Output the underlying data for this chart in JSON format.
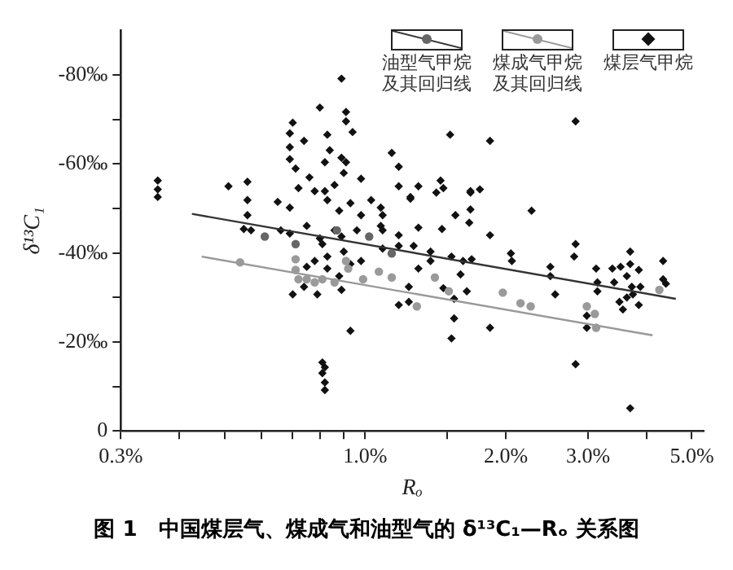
{
  "chart_data": {
    "type": "scatter",
    "title": "图 1　中国煤层气、煤成气和油型气的 δ¹³C₁—Rₒ 关系图",
    "xlabel": "Rₒ",
    "ylabel": "δ¹³C₁",
    "log": "x",
    "grid": false,
    "legend": "top right",
    "xlim": [
      0.3,
      5.3
    ],
    "xticks": [
      {
        "value": 0.3,
        "label": "0.3%"
      },
      {
        "value": 0.4,
        "label": null
      },
      {
        "value": 0.5,
        "label": null
      },
      {
        "value": 0.6,
        "label": null
      },
      {
        "value": 0.7,
        "label": null
      },
      {
        "value": 0.8,
        "label": null
      },
      {
        "value": 0.9,
        "label": null
      },
      {
        "value": 1,
        "label": "1.0%"
      },
      {
        "value": 1.5,
        "label": null
      },
      {
        "value": 2,
        "label": "2.0%"
      },
      {
        "value": 3,
        "label": "3.0%"
      },
      {
        "value": 4,
        "label": null
      },
      {
        "value": 5,
        "label": "5.0%"
      }
    ],
    "ylim": [
      0,
      -90
    ],
    "yticks": [
      0,
      {
        "value": -10,
        "label": null
      },
      {
        "value": -20,
        "label": "-20‰"
      },
      {
        "value": -30,
        "label": null
      },
      {
        "value": -40,
        "label": "-40‰"
      },
      {
        "value": -50,
        "label": null
      },
      {
        "value": -60,
        "label": "-60‰"
      },
      {
        "value": -70,
        "label": null
      },
      {
        "value": -80,
        "label": "-80‰"
      }
    ],
    "series": [
      {
        "name": "油型气甲烷及其回归线",
        "type": "scatter",
        "marker": "circle",
        "color": "#666666",
        "x": [
          0.61,
          0.71,
          0.87,
          1.02,
          1.14
        ],
        "values": [
          -43.7,
          -42,
          -45.1,
          -43.7,
          -39.9
        ]
      },
      {
        "type": "line",
        "marker": "none",
        "color": "#333333",
        "x": [
          0.426,
          4.62
        ],
        "values": [
          -48.8,
          -29.7
        ]
      },
      {
        "name": "煤成气甲烷及其回归线",
        "type": "scatter",
        "marker": "circle",
        "color": "#9a9a9a",
        "x": [
          0.54,
          0.71,
          0.71,
          0.72,
          0.75,
          0.78,
          0.81,
          0.86,
          0.91,
          0.92,
          0.99,
          1.07,
          1.08,
          1.14,
          1.41,
          1.51,
          1.29,
          1.97,
          2.15,
          2.26,
          2.98,
          3.1,
          3.12,
          4.26
        ],
        "values": [
          -37.9,
          -38.6,
          -36.2,
          -34.1,
          -34.1,
          -33.4,
          -34.1,
          -33.4,
          -38.2,
          -36.5,
          -34.1,
          -35.8,
          null,
          -34.5,
          -34.5,
          -31.4,
          -28,
          -31.1,
          -28.7,
          -28,
          -28,
          -26.3,
          -23.2,
          -31.7
        ]
      },
      {
        "type": "line",
        "marker": "none",
        "color": "#999999",
        "x": [
          0.447,
          4.12
        ],
        "values": [
          -39.2,
          -21.5
        ]
      },
      {
        "name": "煤层气甲烷",
        "type": "scatter",
        "marker": "diamond",
        "color": "#111111",
        "x": [
          0.36,
          0.36,
          0.36,
          0.51,
          0.56,
          0.56,
          0.89,
          0.8,
          0.91,
          0.91,
          0.94,
          0.7,
          0.69,
          0.69,
          0.74,
          0.83,
          0.84,
          0.82,
          0.69,
          0.71,
          0.76,
          0.89,
          0.91,
          0.9,
          0.98,
          0.82,
          0.86,
          1.14,
          1.18,
          1.52,
          1.85,
          2.82,
          1.45,
          1.68,
          1.76,
          1.18,
          1.3,
          1.25,
          1.03,
          0.56,
          0.55,
          0.57,
          0.65,
          0.69,
          0.66,
          0.69,
          0.72,
          0.75,
          0.8,
          0.81,
          0.78,
          0.75,
          0.74,
          0.7,
          0.79,
          0.83,
          0.83,
          0.86,
          0.89,
          0.9,
          0.88,
          0.89,
          0.93,
          0.96,
          0.98,
          0.93,
          0.81,
          0.81,
          0.82,
          0.82,
          0.82,
          0.78,
          0.83,
          0.88,
          0.93,
          0.98,
          1.08,
          1.08,
          1.25,
          1.42,
          1.47,
          1.68,
          1.56,
          1.68,
          1.67,
          1.09,
          1.09,
          1.3,
          1.18,
          1.46,
          1.85,
          2.27,
          1.09,
          1.18,
          1.27,
          1.38,
          1.38,
          1.53,
          1.62,
          1.69,
          1.6,
          1.3,
          1.24,
          1.47,
          1.65,
          1.55,
          1.18,
          1.24,
          1.55,
          1.53,
          1.85,
          2.05,
          2.06,
          2.49,
          2.49,
          2.55,
          2.82,
          2.8,
          2.82,
          3.12,
          3.14,
          3.14,
          2.98,
          2.98,
          3.38,
          3.41,
          3.52,
          3.5,
          3.56,
          3.69,
          3.69,
          3.63,
          3.72,
          3.63,
          3.74,
          3.85,
          3.88,
          3.85,
          3.69,
          4.34,
          4.34,
          4.4
        ],
        "values": [
          -56.3,
          -54.3,
          -52.6,
          -55,
          -56,
          -51.9,
          -79.2,
          -72.7,
          -71.7,
          -69.6,
          -67.2,
          -69.3,
          -66.9,
          -63.8,
          -65.2,
          -66.6,
          -63.1,
          -60.4,
          -61.1,
          -59,
          -57,
          -61.4,
          -60.4,
          -58,
          -56.7,
          -53.9,
          -55.3,
          -62.5,
          -59.4,
          -66.6,
          -65.2,
          -69.6,
          -56.3,
          -53.6,
          -54.3,
          -55,
          -55,
          -52.6,
          -51.9,
          -48.5,
          -45.4,
          -45.1,
          -51.5,
          -50.2,
          -45.1,
          -44.4,
          -54.6,
          -46.1,
          -43.3,
          -42,
          -38.2,
          -36.9,
          -32.4,
          -30.7,
          -30.7,
          -36.5,
          -39.2,
          -45.1,
          -43.7,
          -40.3,
          -34.8,
          -31.7,
          -37.5,
          -45.1,
          -38.2,
          -22.5,
          -15.4,
          -13,
          -10.9,
          -9.2,
          -14.3,
          -53.9,
          -51.9,
          -49.5,
          -51.2,
          -48.5,
          -46.1,
          -50.2,
          -52.2,
          -53.6,
          -54.6,
          -53.9,
          -48.5,
          -49.8,
          -46.8,
          -48.5,
          -45.1,
          -45.7,
          -44,
          -45.4,
          -44,
          -49.5,
          -41,
          -41.6,
          -41.6,
          -40.3,
          -38.2,
          -39.2,
          -38.2,
          -38.6,
          -35.2,
          -36.5,
          -32.4,
          -32.1,
          -31.4,
          -29.7,
          -28.3,
          -29,
          -25.3,
          -20.8,
          -23.2,
          -39.9,
          -38.2,
          -36.9,
          -34.8,
          -30.7,
          -42,
          -39.2,
          -15,
          -36.5,
          -33.4,
          -31.4,
          -25.9,
          -23.2,
          -36.5,
          -33.4,
          -36.9,
          -29,
          -27.3,
          -40.3,
          -37.5,
          -34.8,
          -32.4,
          -30,
          -30.7,
          -36.2,
          -32.4,
          -28.3,
          -5.1,
          -38.2,
          -34.1,
          -33.1
        ]
      }
    ]
  }
}
